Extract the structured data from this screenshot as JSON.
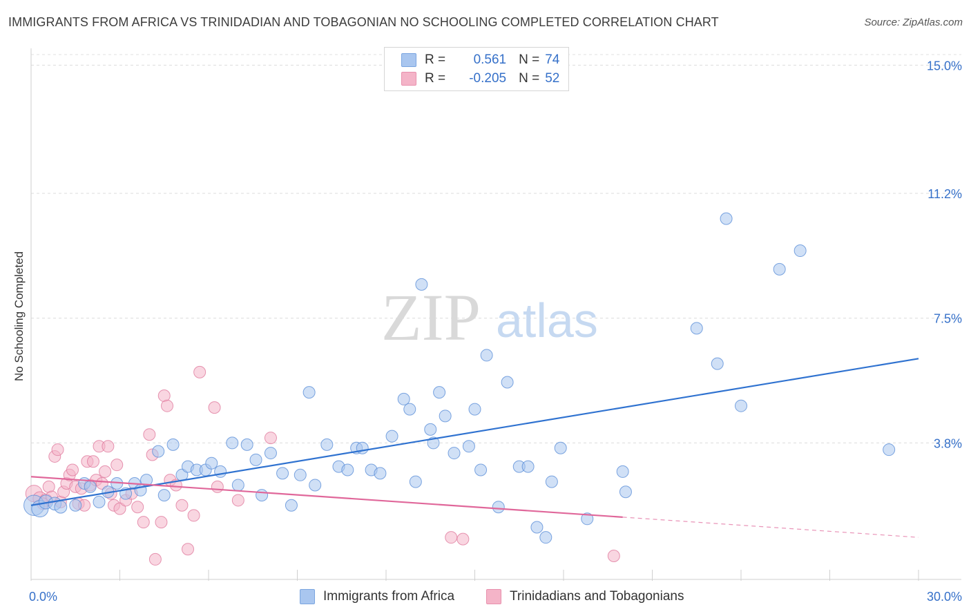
{
  "header": {
    "title": "IMMIGRANTS FROM AFRICA VS TRINIDADIAN AND TOBAGONIAN NO SCHOOLING COMPLETED CORRELATION CHART",
    "source": "Source: ZipAtlas.com"
  },
  "watermark": {
    "zip": "ZIP",
    "atlas": "atlas"
  },
  "legend": {
    "rows": [
      {
        "r_label": "R =",
        "r_value": "0.561",
        "n_label": "N =",
        "n_value": "74",
        "color": "#a9c6ef"
      },
      {
        "r_label": "R =",
        "r_value": "-0.205",
        "n_label": "N =",
        "n_value": "52",
        "color": "#f4b4c8"
      }
    ]
  },
  "chart_data": {
    "type": "scatter",
    "title": "IMMIGRANTS FROM AFRICA VS TRINIDADIAN AND TOBAGONIAN NO SCHOOLING COMPLETED CORRELATION CHART",
    "xlabel": "",
    "ylabel": "No Schooling Completed",
    "xlim": [
      0,
      30
    ],
    "ylim": [
      0,
      15.5
    ],
    "x_tick_labels": [
      "0.0%",
      "30.0%"
    ],
    "y_ticks": [
      3.8,
      7.5,
      11.2,
      15.0
    ],
    "y_tick_labels": [
      "3.8%",
      "7.5%",
      "11.2%",
      "15.0%"
    ],
    "grid": true,
    "series": [
      {
        "name": "Immigrants from Africa",
        "color": "#a9c6ef",
        "stroke": "#5b8fd8",
        "line_color": "#2f72d0",
        "trend": {
          "x0": 0,
          "y0": 1.95,
          "x1": 30,
          "y1": 6.3
        },
        "points": [
          [
            0.1,
            1.95,
            3
          ],
          [
            0.3,
            1.85,
            2
          ],
          [
            0.5,
            2.05,
            1.4
          ],
          [
            0.8,
            2.0,
            1.2
          ],
          [
            1.0,
            1.9,
            1.1
          ],
          [
            1.5,
            1.95,
            1
          ],
          [
            1.8,
            2.6,
            1
          ],
          [
            2.0,
            2.5,
            1
          ],
          [
            2.3,
            2.05,
            1
          ],
          [
            2.6,
            2.35,
            1
          ],
          [
            2.9,
            2.6,
            1
          ],
          [
            3.2,
            2.3,
            1
          ],
          [
            3.5,
            2.6,
            1
          ],
          [
            3.7,
            2.4,
            1
          ],
          [
            3.9,
            2.7,
            1
          ],
          [
            4.3,
            3.55,
            1
          ],
          [
            4.5,
            2.25,
            1
          ],
          [
            4.8,
            3.75,
            1
          ],
          [
            5.1,
            2.85,
            1
          ],
          [
            5.3,
            3.1,
            1
          ],
          [
            5.6,
            3.0,
            1
          ],
          [
            5.9,
            3.0,
            1
          ],
          [
            6.1,
            3.2,
            1
          ],
          [
            6.4,
            2.95,
            1
          ],
          [
            6.8,
            3.8,
            1
          ],
          [
            7.0,
            2.55,
            1
          ],
          [
            7.3,
            3.75,
            1
          ],
          [
            7.6,
            3.3,
            1
          ],
          [
            7.8,
            2.25,
            1
          ],
          [
            8.1,
            3.5,
            1
          ],
          [
            8.5,
            2.9,
            1
          ],
          [
            8.8,
            1.95,
            1
          ],
          [
            9.1,
            2.85,
            1
          ],
          [
            9.4,
            5.3,
            1
          ],
          [
            9.6,
            2.55,
            1
          ],
          [
            10.0,
            3.75,
            1
          ],
          [
            10.4,
            3.1,
            1
          ],
          [
            10.7,
            3.0,
            1
          ],
          [
            11.0,
            3.65,
            1
          ],
          [
            11.2,
            3.65,
            1
          ],
          [
            11.5,
            3.0,
            1
          ],
          [
            11.8,
            2.9,
            1
          ],
          [
            12.2,
            4.0,
            1
          ],
          [
            12.6,
            5.1,
            1
          ],
          [
            12.8,
            4.8,
            1
          ],
          [
            13.0,
            2.65,
            1
          ],
          [
            13.2,
            8.5,
            1
          ],
          [
            13.5,
            4.2,
            1
          ],
          [
            13.6,
            3.8,
            1
          ],
          [
            13.8,
            5.3,
            1
          ],
          [
            14.0,
            4.6,
            1
          ],
          [
            14.3,
            3.5,
            1
          ],
          [
            14.8,
            3.7,
            1
          ],
          [
            15.0,
            4.8,
            1
          ],
          [
            15.2,
            3.0,
            1
          ],
          [
            15.4,
            6.4,
            1
          ],
          [
            15.8,
            1.9,
            1
          ],
          [
            16.1,
            5.6,
            1
          ],
          [
            16.5,
            3.1,
            1
          ],
          [
            16.8,
            3.1,
            1
          ],
          [
            17.1,
            1.3,
            1
          ],
          [
            17.4,
            1.0,
            1
          ],
          [
            17.6,
            2.65,
            1
          ],
          [
            17.9,
            3.65,
            1
          ],
          [
            18.8,
            1.55,
            1
          ],
          [
            20.0,
            2.95,
            1
          ],
          [
            20.1,
            2.35,
            1
          ],
          [
            22.5,
            7.2,
            1
          ],
          [
            23.2,
            6.15,
            1
          ],
          [
            23.5,
            10.45,
            1
          ],
          [
            24.0,
            4.9,
            1
          ],
          [
            25.3,
            8.95,
            1
          ],
          [
            26.0,
            9.5,
            1
          ],
          [
            29.0,
            3.6,
            1
          ]
        ]
      },
      {
        "name": "Trinidadians and Tobagonians",
        "color": "#f4b4c8",
        "stroke": "#e07a9d",
        "line_color": "#e0679a",
        "trend": {
          "x0": 0,
          "y0": 2.8,
          "x1": 20.0,
          "y1": 1.6,
          "dash_x1": 30,
          "dash_y1": 1.0
        },
        "points": [
          [
            0.1,
            2.3,
            2
          ],
          [
            0.3,
            2.15,
            1.4
          ],
          [
            0.5,
            2.1,
            1.2
          ],
          [
            0.6,
            2.5,
            1
          ],
          [
            0.7,
            2.2,
            1
          ],
          [
            0.8,
            3.4,
            1
          ],
          [
            0.9,
            3.6,
            1
          ],
          [
            1.0,
            2.05,
            1
          ],
          [
            1.1,
            2.35,
            1
          ],
          [
            1.2,
            2.6,
            1
          ],
          [
            1.3,
            2.85,
            1
          ],
          [
            1.4,
            3.0,
            1
          ],
          [
            1.5,
            2.5,
            1
          ],
          [
            1.6,
            2.0,
            1
          ],
          [
            1.7,
            2.45,
            1
          ],
          [
            1.8,
            1.95,
            1
          ],
          [
            1.9,
            3.25,
            1
          ],
          [
            2.0,
            2.55,
            1
          ],
          [
            2.1,
            3.25,
            1
          ],
          [
            2.2,
            2.7,
            1
          ],
          [
            2.3,
            3.7,
            1
          ],
          [
            2.4,
            2.6,
            1
          ],
          [
            2.5,
            2.95,
            1
          ],
          [
            2.6,
            3.7,
            1
          ],
          [
            2.7,
            2.3,
            1
          ],
          [
            2.8,
            1.95,
            1
          ],
          [
            2.9,
            3.15,
            1
          ],
          [
            3.0,
            1.85,
            1
          ],
          [
            3.2,
            2.1,
            1
          ],
          [
            3.4,
            2.3,
            1
          ],
          [
            3.6,
            1.9,
            1
          ],
          [
            3.8,
            1.45,
            1
          ],
          [
            4.0,
            4.05,
            1
          ],
          [
            4.1,
            3.45,
            1
          ],
          [
            4.2,
            0.35,
            1
          ],
          [
            4.4,
            1.45,
            1
          ],
          [
            4.5,
            5.2,
            1
          ],
          [
            4.6,
            4.9,
            1
          ],
          [
            4.7,
            2.7,
            1
          ],
          [
            4.9,
            2.55,
            1
          ],
          [
            5.1,
            1.95,
            1
          ],
          [
            5.3,
            0.65,
            1
          ],
          [
            5.5,
            1.65,
            1
          ],
          [
            5.7,
            5.9,
            1
          ],
          [
            6.2,
            4.85,
            1
          ],
          [
            6.3,
            2.5,
            1
          ],
          [
            7.0,
            2.1,
            1
          ],
          [
            8.1,
            3.95,
            1
          ],
          [
            14.2,
            1.0,
            1
          ],
          [
            14.6,
            0.95,
            1
          ],
          [
            19.7,
            0.45,
            1
          ],
          [
            0.4,
            2.0,
            1
          ]
        ]
      }
    ]
  },
  "bottom_legend": {
    "items": [
      {
        "label": "Immigrants from Africa",
        "color": "#a9c6ef"
      },
      {
        "label": "Trinidadians and Tobagonians",
        "color": "#f4b4c8"
      }
    ]
  }
}
